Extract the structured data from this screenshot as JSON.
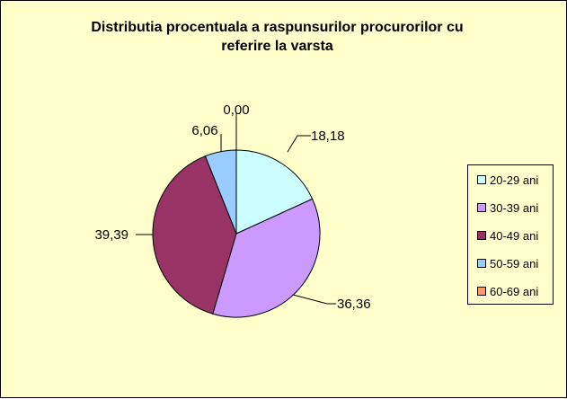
{
  "chart_data": {
    "type": "pie",
    "title_lines": [
      "Distributia procentuala a raspunsurilor procurorilor cu",
      "referire la varsta"
    ],
    "categories": [
      "20-29 ani",
      "30-39 ani",
      "40-49 ani",
      "50-59 ani",
      "60-69 ani"
    ],
    "values": [
      18.18,
      36.36,
      39.39,
      6.06,
      0.0
    ],
    "data_labels": [
      "18,18",
      "36,36",
      "39,39",
      "6,06",
      "0,00"
    ],
    "colors": [
      "#ccffff",
      "#cc99ff",
      "#993366",
      "#99ccff",
      "#ff9966"
    ],
    "legend_position": "right",
    "start_angle": "12 o'clock, clockwise"
  }
}
